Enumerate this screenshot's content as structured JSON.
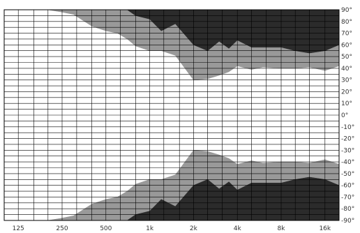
{
  "chart_data": {
    "type": "area",
    "title": "",
    "xlabel": "",
    "ylabel": "",
    "x_scale": "log",
    "x_tick_labels": [
      "125",
      "250",
      "500",
      "1k",
      "2k",
      "4k",
      "8k",
      "16k"
    ],
    "x_tick_values": [
      125,
      250,
      500,
      1000,
      2000,
      4000,
      8000,
      16000
    ],
    "xlim": [
      100,
      20000
    ],
    "ylim": [
      -90,
      90
    ],
    "y_tick_labels": [
      "90°",
      "80°",
      "70°",
      "60°",
      "50°",
      "40°",
      "30°",
      "20°",
      "10°",
      "0°",
      "-10°",
      "-20°",
      "-30°",
      "-40°",
      "-50°",
      "-60°",
      "-70°",
      "-80°",
      "-90°"
    ],
    "y_tick_values": [
      90,
      80,
      70,
      60,
      50,
      40,
      30,
      20,
      10,
      0,
      -10,
      -20,
      -30,
      -40,
      -50,
      -60,
      -70,
      -80,
      -90
    ],
    "grid": true,
    "legend": "none",
    "colors": {
      "outer_band": "#999999",
      "inner_band": "#2b2b2b",
      "background": "#ffffff",
      "grid": "#000000"
    },
    "series": [
      {
        "x": [
          200,
          250,
          300,
          400,
          500,
          600,
          700,
          800,
          1000,
          1200,
          1500,
          2000,
          2500,
          3000,
          3500,
          4000,
          5000,
          6000,
          8000,
          10000,
          12500,
          16000,
          20000
        ],
        "values": [
          90,
          88,
          86,
          76,
          72,
          70,
          65,
          59,
          55,
          55,
          51,
          30,
          31,
          34,
          37,
          42,
          39,
          41,
          40,
          40,
          41,
          38,
          42
        ]
      },
      {
        "x": [
          600,
          700,
          800,
          1000,
          1200,
          1500,
          2000,
          2500,
          3000,
          3500,
          4000,
          5000,
          6000,
          8000,
          10000,
          12500,
          16000,
          20000
        ],
        "values": [
          90,
          90,
          85,
          82,
          72,
          78,
          60,
          55,
          63,
          57,
          64,
          58,
          58,
          58,
          55,
          53,
          55,
          60
        ]
      },
      {
        "x": [
          200,
          250,
          300,
          400,
          500,
          600,
          700,
          800,
          1000,
          1200,
          1500,
          2000,
          2500,
          3000,
          3500,
          4000,
          5000,
          6000,
          8000,
          10000,
          12500,
          16000,
          20000
        ],
        "values": [
          -90,
          -88,
          -86,
          -76,
          -72,
          -70,
          -65,
          -59,
          -55,
          -55,
          -51,
          -30,
          -31,
          -34,
          -37,
          -42,
          -39,
          -41,
          -40,
          -40,
          -41,
          -38,
          -42
        ]
      },
      {
        "x": [
          600,
          700,
          800,
          1000,
          1200,
          1500,
          2000,
          2500,
          3000,
          3500,
          4000,
          5000,
          6000,
          8000,
          10000,
          12500,
          16000,
          20000
        ],
        "values": [
          -90,
          -90,
          -85,
          -82,
          -72,
          -78,
          -60,
          -55,
          -63,
          -57,
          -64,
          -58,
          -58,
          -58,
          -55,
          -53,
          -55,
          -60
        ]
      }
    ]
  }
}
